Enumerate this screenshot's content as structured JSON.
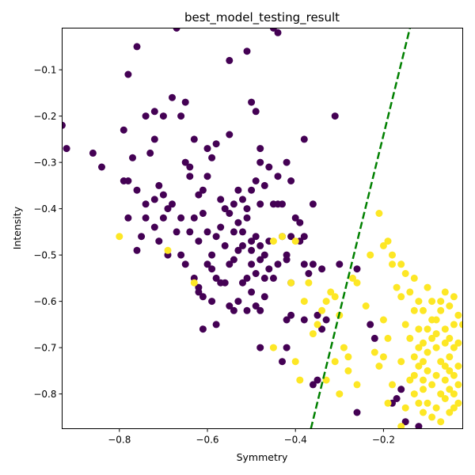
{
  "chart_data": {
    "type": "scatter",
    "title": "best_model_testing_result",
    "xlabel": "Symmetry",
    "ylabel": "Intensity",
    "xlim": [
      -0.93,
      -0.02
    ],
    "ylim": [
      -0.875,
      -0.01
    ],
    "xticks": [
      -0.8,
      -0.6,
      -0.4,
      -0.2
    ],
    "xtick_labels": [
      "−0.8",
      "−0.6",
      "−0.4",
      "−0.2"
    ],
    "yticks": [
      -0.1,
      -0.2,
      -0.3,
      -0.4,
      -0.5,
      -0.6,
      -0.7,
      -0.8
    ],
    "ytick_labels": [
      "−0.1",
      "−0.2",
      "−0.3",
      "−0.4",
      "−0.5",
      "−0.6",
      "−0.7",
      "−0.8"
    ],
    "grid": false,
    "legend": "none",
    "colors": {
      "class_a": "#440154",
      "class_b": "#fde725",
      "boundary": "#008000"
    },
    "boundary_line": {
      "style": "dashed",
      "x": [
        -0.365,
        -0.14
      ],
      "y": [
        -0.875,
        -0.01
      ]
    },
    "series": [
      {
        "color": "#440154",
        "points": [
          [
            -0.67,
            -0.01
          ],
          [
            -0.45,
            -0.01
          ],
          [
            -0.44,
            -0.02
          ],
          [
            -0.76,
            -0.05
          ],
          [
            -0.55,
            -0.08
          ],
          [
            -0.51,
            -0.06
          ],
          [
            -0.78,
            -0.11
          ],
          [
            -0.93,
            -0.22
          ],
          [
            -0.92,
            -0.27
          ],
          [
            -0.86,
            -0.28
          ],
          [
            -0.84,
            -0.31
          ],
          [
            -0.79,
            -0.23
          ],
          [
            -0.74,
            -0.2
          ],
          [
            -0.72,
            -0.19
          ],
          [
            -0.7,
            -0.2
          ],
          [
            -0.68,
            -0.16
          ],
          [
            -0.66,
            -0.2
          ],
          [
            -0.65,
            -0.17
          ],
          [
            -0.72,
            -0.25
          ],
          [
            -0.73,
            -0.28
          ],
          [
            -0.77,
            -0.29
          ],
          [
            -0.63,
            -0.25
          ],
          [
            -0.6,
            -0.27
          ],
          [
            -0.58,
            -0.26
          ],
          [
            -0.59,
            -0.29
          ],
          [
            -0.55,
            -0.24
          ],
          [
            -0.5,
            -0.17
          ],
          [
            -0.49,
            -0.19
          ],
          [
            -0.48,
            -0.27
          ],
          [
            -0.48,
            -0.3
          ],
          [
            -0.46,
            -0.31
          ],
          [
            -0.44,
            -0.33
          ],
          [
            -0.42,
            -0.3
          ],
          [
            -0.38,
            -0.25
          ],
          [
            -0.41,
            -0.34
          ],
          [
            -0.31,
            -0.2
          ],
          [
            -0.79,
            -0.34
          ],
          [
            -0.78,
            -0.34
          ],
          [
            -0.76,
            -0.36
          ],
          [
            -0.74,
            -0.39
          ],
          [
            -0.72,
            -0.38
          ],
          [
            -0.71,
            -0.35
          ],
          [
            -0.7,
            -0.37
          ],
          [
            -0.69,
            -0.4
          ],
          [
            -0.68,
            -0.39
          ],
          [
            -0.66,
            -0.42
          ],
          [
            -0.65,
            -0.3
          ],
          [
            -0.64,
            -0.31
          ],
          [
            -0.64,
            -0.33
          ],
          [
            -0.62,
            -0.37
          ],
          [
            -0.61,
            -0.36
          ],
          [
            -0.6,
            -0.33
          ],
          [
            -0.57,
            -0.38
          ],
          [
            -0.56,
            -0.4
          ],
          [
            -0.54,
            -0.39
          ],
          [
            -0.53,
            -0.36
          ],
          [
            -0.52,
            -0.38
          ],
          [
            -0.51,
            -0.4
          ],
          [
            -0.5,
            -0.36
          ],
          [
            -0.49,
            -0.34
          ],
          [
            -0.48,
            -0.39
          ],
          [
            -0.47,
            -0.35
          ],
          [
            -0.45,
            -0.39
          ],
          [
            -0.44,
            -0.39
          ],
          [
            -0.43,
            -0.39
          ],
          [
            -0.4,
            -0.42
          ],
          [
            -0.39,
            -0.43
          ],
          [
            -0.36,
            -0.39
          ],
          [
            -0.78,
            -0.42
          ],
          [
            -0.75,
            -0.46
          ],
          [
            -0.74,
            -0.42
          ],
          [
            -0.72,
            -0.44
          ],
          [
            -0.71,
            -0.47
          ],
          [
            -0.7,
            -0.42
          ],
          [
            -0.69,
            -0.5
          ],
          [
            -0.67,
            -0.45
          ],
          [
            -0.66,
            -0.5
          ],
          [
            -0.64,
            -0.45
          ],
          [
            -0.63,
            -0.42
          ],
          [
            -0.62,
            -0.47
          ],
          [
            -0.61,
            -0.41
          ],
          [
            -0.6,
            -0.45
          ],
          [
            -0.59,
            -0.5
          ],
          [
            -0.58,
            -0.46
          ],
          [
            -0.57,
            -0.44
          ],
          [
            -0.55,
            -0.41
          ],
          [
            -0.54,
            -0.45
          ],
          [
            -0.53,
            -0.43
          ],
          [
            -0.52,
            -0.45
          ],
          [
            -0.51,
            -0.42
          ],
          [
            -0.5,
            -0.47
          ],
          [
            -0.49,
            -0.46
          ],
          [
            -0.48,
            -0.48
          ],
          [
            -0.47,
            -0.5
          ],
          [
            -0.46,
            -0.47
          ],
          [
            -0.43,
            -0.46
          ],
          [
            -0.42,
            -0.5
          ],
          [
            -0.41,
            -0.46
          ],
          [
            -0.39,
            -0.47
          ],
          [
            -0.38,
            -0.46
          ],
          [
            -0.76,
            -0.49
          ],
          [
            -0.65,
            -0.52
          ],
          [
            -0.63,
            -0.55
          ],
          [
            -0.62,
            -0.57
          ],
          [
            -0.61,
            -0.59
          ],
          [
            -0.6,
            -0.52
          ],
          [
            -0.59,
            -0.53
          ],
          [
            -0.58,
            -0.55
          ],
          [
            -0.57,
            -0.56
          ],
          [
            -0.56,
            -0.48
          ],
          [
            -0.55,
            -0.52
          ],
          [
            -0.54,
            -0.51
          ],
          [
            -0.53,
            -0.49
          ],
          [
            -0.52,
            -0.48
          ],
          [
            -0.51,
            -0.55
          ],
          [
            -0.5,
            -0.49
          ],
          [
            -0.5,
            -0.52
          ],
          [
            -0.49,
            -0.54
          ],
          [
            -0.48,
            -0.51
          ],
          [
            -0.47,
            -0.55
          ],
          [
            -0.46,
            -0.53
          ],
          [
            -0.45,
            -0.55
          ],
          [
            -0.44,
            -0.52
          ],
          [
            -0.42,
            -0.51
          ],
          [
            -0.41,
            -0.56
          ],
          [
            -0.38,
            -0.52
          ],
          [
            -0.37,
            -0.54
          ],
          [
            -0.36,
            -0.52
          ],
          [
            -0.34,
            -0.53
          ],
          [
            -0.3,
            -0.52
          ],
          [
            -0.62,
            -0.58
          ],
          [
            -0.61,
            -0.66
          ],
          [
            -0.59,
            -0.6
          ],
          [
            -0.58,
            -0.65
          ],
          [
            -0.56,
            -0.56
          ],
          [
            -0.55,
            -0.61
          ],
          [
            -0.54,
            -0.62
          ],
          [
            -0.53,
            -0.6
          ],
          [
            -0.52,
            -0.56
          ],
          [
            -0.51,
            -0.62
          ],
          [
            -0.5,
            -0.58
          ],
          [
            -0.49,
            -0.61
          ],
          [
            -0.48,
            -0.62
          ],
          [
            -0.47,
            -0.59
          ],
          [
            -0.42,
            -0.64
          ],
          [
            -0.41,
            -0.63
          ],
          [
            -0.38,
            -0.64
          ],
          [
            -0.35,
            -0.63
          ],
          [
            -0.34,
            -0.66
          ],
          [
            -0.33,
            -0.64
          ],
          [
            -0.48,
            -0.7
          ],
          [
            -0.43,
            -0.73
          ],
          [
            -0.42,
            -0.7
          ],
          [
            -0.36,
            -0.78
          ],
          [
            -0.35,
            -0.77
          ],
          [
            -0.26,
            -0.53
          ],
          [
            -0.26,
            -0.84
          ],
          [
            -0.23,
            -0.65
          ],
          [
            -0.22,
            -0.68
          ],
          [
            -0.17,
            -0.81
          ],
          [
            -0.16,
            -0.79
          ],
          [
            -0.15,
            -0.86
          ],
          [
            -0.12,
            -0.87
          ],
          [
            -0.18,
            -0.82
          ]
        ]
      },
      {
        "color": "#fde725",
        "points": [
          [
            -0.8,
            -0.46
          ],
          [
            -0.69,
            -0.49
          ],
          [
            -0.63,
            -0.56
          ],
          [
            -0.45,
            -0.47
          ],
          [
            -0.43,
            -0.46
          ],
          [
            -0.4,
            -0.47
          ],
          [
            -0.41,
            -0.56
          ],
          [
            -0.38,
            -0.6
          ],
          [
            -0.37,
            -0.56
          ],
          [
            -0.35,
            -0.65
          ],
          [
            -0.34,
            -0.62
          ],
          [
            -0.33,
            -0.6
          ],
          [
            -0.32,
            -0.58
          ],
          [
            -0.31,
            -0.59
          ],
          [
            -0.3,
            -0.63
          ],
          [
            -0.29,
            -0.7
          ],
          [
            -0.28,
            -0.72
          ],
          [
            -0.27,
            -0.55
          ],
          [
            -0.26,
            -0.56
          ],
          [
            -0.26,
            -0.78
          ],
          [
            -0.24,
            -0.61
          ],
          [
            -0.23,
            -0.5
          ],
          [
            -0.21,
            -0.41
          ],
          [
            -0.2,
            -0.48
          ],
          [
            -0.19,
            -0.47
          ],
          [
            -0.18,
            -0.52
          ],
          [
            -0.18,
            -0.5
          ],
          [
            -0.16,
            -0.52
          ],
          [
            -0.15,
            -0.54
          ],
          [
            -0.13,
            -0.55
          ],
          [
            -0.12,
            -0.6
          ],
          [
            -0.11,
            -0.62
          ],
          [
            -0.1,
            -0.57
          ],
          [
            -0.09,
            -0.6
          ],
          [
            -0.08,
            -0.64
          ],
          [
            -0.07,
            -0.62
          ],
          [
            -0.06,
            -0.58
          ],
          [
            -0.05,
            -0.61
          ],
          [
            -0.04,
            -0.59
          ],
          [
            -0.03,
            -0.63
          ],
          [
            -0.17,
            -0.57
          ],
          [
            -0.16,
            -0.59
          ],
          [
            -0.14,
            -0.58
          ],
          [
            -0.13,
            -0.62
          ],
          [
            -0.12,
            -0.66
          ],
          [
            -0.11,
            -0.69
          ],
          [
            -0.1,
            -0.71
          ],
          [
            -0.09,
            -0.68
          ],
          [
            -0.08,
            -0.7
          ],
          [
            -0.07,
            -0.73
          ],
          [
            -0.06,
            -0.69
          ],
          [
            -0.05,
            -0.72
          ],
          [
            -0.04,
            -0.7
          ],
          [
            -0.03,
            -0.74
          ],
          [
            -0.02,
            -0.65
          ],
          [
            -0.15,
            -0.65
          ],
          [
            -0.14,
            -0.68
          ],
          [
            -0.13,
            -0.72
          ],
          [
            -0.12,
            -0.74
          ],
          [
            -0.11,
            -0.77
          ],
          [
            -0.1,
            -0.75
          ],
          [
            -0.09,
            -0.78
          ],
          [
            -0.08,
            -0.76
          ],
          [
            -0.07,
            -0.8
          ],
          [
            -0.06,
            -0.77
          ],
          [
            -0.05,
            -0.79
          ],
          [
            -0.04,
            -0.76
          ],
          [
            -0.03,
            -0.78
          ],
          [
            -0.2,
            -0.64
          ],
          [
            -0.19,
            -0.68
          ],
          [
            -0.2,
            -0.72
          ],
          [
            -0.21,
            -0.74
          ],
          [
            -0.22,
            -0.71
          ],
          [
            -0.18,
            -0.78
          ],
          [
            -0.16,
            -0.73
          ],
          [
            -0.19,
            -0.82
          ],
          [
            -0.11,
            -0.84
          ],
          [
            -0.1,
            -0.82
          ],
          [
            -0.09,
            -0.85
          ],
          [
            -0.08,
            -0.83
          ],
          [
            -0.07,
            -0.86
          ],
          [
            -0.06,
            -0.81
          ],
          [
            -0.05,
            -0.84
          ],
          [
            -0.04,
            -0.8
          ],
          [
            -0.03,
            -0.82
          ],
          [
            -0.14,
            -0.77
          ],
          [
            -0.13,
            -0.8
          ],
          [
            -0.12,
            -0.82
          ],
          [
            -0.11,
            -0.79
          ],
          [
            -0.15,
            -0.83
          ],
          [
            -0.16,
            -0.87
          ],
          [
            -0.06,
            -0.66
          ],
          [
            -0.05,
            -0.68
          ],
          [
            -0.04,
            -0.65
          ],
          [
            -0.03,
            -0.69
          ],
          [
            -0.09,
            -0.64
          ],
          [
            -0.08,
            -0.67
          ],
          [
            -0.07,
            -0.6
          ],
          [
            -0.1,
            -0.66
          ],
          [
            -0.11,
            -0.73
          ],
          [
            -0.12,
            -0.7
          ],
          [
            -0.13,
            -0.76
          ],
          [
            -0.06,
            -0.74
          ],
          [
            -0.05,
            -0.75
          ],
          [
            -0.04,
            -0.83
          ],
          [
            -0.31,
            -0.73
          ],
          [
            -0.28,
            -0.75
          ],
          [
            -0.3,
            -0.8
          ],
          [
            -0.33,
            -0.77
          ],
          [
            -0.4,
            -0.73
          ],
          [
            -0.39,
            -0.77
          ],
          [
            -0.45,
            -0.7
          ],
          [
            -0.36,
            -0.67
          ]
        ]
      }
    ]
  }
}
